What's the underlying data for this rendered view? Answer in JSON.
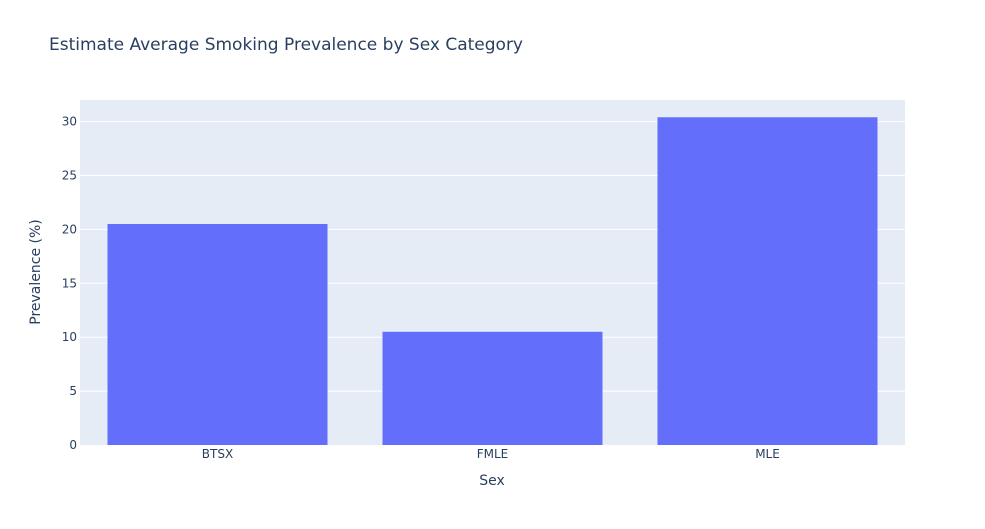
{
  "chart_data": {
    "type": "bar",
    "title": "Estimate Average Smoking Prevalence by Sex Category",
    "xlabel": "Sex",
    "ylabel": "Prevalence (%)",
    "categories": [
      "BTSX",
      "FMLE",
      "MLE"
    ],
    "values": [
      20.5,
      10.5,
      30.4
    ],
    "ylim": [
      0,
      32
    ],
    "yticks": [
      0,
      5,
      10,
      15,
      20,
      25,
      30
    ],
    "grid": true,
    "colors": {
      "bar": "#636efa",
      "plot_bg": "#e5ecf6",
      "grid": "#ffffff",
      "text": "#2a3f5f"
    }
  }
}
